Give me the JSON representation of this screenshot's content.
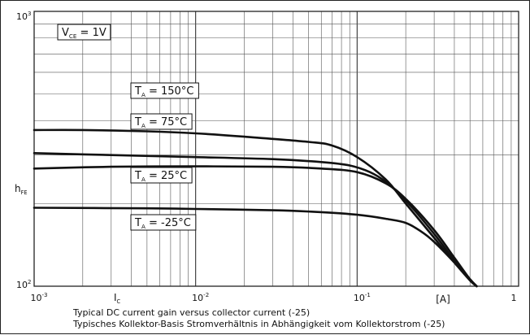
{
  "chart_data": {
    "type": "line",
    "x_scale": "log",
    "y_scale": "log",
    "xlim": [
      0.001,
      1
    ],
    "ylim": [
      100,
      1000
    ],
    "grid": true,
    "x_ticks": [
      {
        "value": 0.001,
        "base": "10",
        "exp": "-3"
      },
      {
        "value": 0.01,
        "base": "10",
        "exp": "-2"
      },
      {
        "value": 0.1,
        "base": "10",
        "exp": "-1"
      },
      {
        "value": 1,
        "base": "1",
        "exp": ""
      }
    ],
    "y_ticks": [
      {
        "value": 1000,
        "base": "10",
        "exp": "3"
      },
      {
        "value": 100,
        "base": "10",
        "exp": "2"
      }
    ],
    "xlabel": {
      "main": "I",
      "sub": "C"
    },
    "xunit": "[A]",
    "ylabel": {
      "main": "h",
      "sub": "FE"
    },
    "condition": {
      "main": "V",
      "sub": "CE",
      "rest": " = 1V"
    },
    "series": [
      {
        "label": {
          "main": "T",
          "sub": "A",
          "rest": " = 150°C"
        },
        "points": [
          [
            0.001,
            370
          ],
          [
            0.002,
            370
          ],
          [
            0.005,
            366
          ],
          [
            0.01,
            360
          ],
          [
            0.02,
            350
          ],
          [
            0.05,
            335
          ],
          [
            0.07,
            325
          ],
          [
            0.1,
            295
          ],
          [
            0.15,
            245
          ],
          [
            0.2,
            200
          ],
          [
            0.3,
            150
          ],
          [
            0.4,
            122
          ],
          [
            0.5,
            105
          ],
          [
            0.55,
            100
          ]
        ]
      },
      {
        "label": {
          "main": "T",
          "sub": "A",
          "rest": " = 75°C"
        },
        "points": [
          [
            0.001,
            305
          ],
          [
            0.003,
            300
          ],
          [
            0.01,
            295
          ],
          [
            0.03,
            290
          ],
          [
            0.06,
            283
          ],
          [
            0.09,
            275
          ],
          [
            0.12,
            260
          ],
          [
            0.15,
            240
          ],
          [
            0.2,
            205
          ],
          [
            0.3,
            155
          ],
          [
            0.4,
            124
          ],
          [
            0.5,
            106
          ],
          [
            0.55,
            100
          ]
        ]
      },
      {
        "label": {
          "main": "T",
          "sub": "A",
          "rest": " = 25°C"
        },
        "points": [
          [
            0.001,
            268
          ],
          [
            0.003,
            272
          ],
          [
            0.01,
            273
          ],
          [
            0.03,
            272
          ],
          [
            0.06,
            268
          ],
          [
            0.1,
            260
          ],
          [
            0.15,
            237
          ],
          [
            0.2,
            208
          ],
          [
            0.3,
            160
          ],
          [
            0.4,
            127
          ],
          [
            0.5,
            106
          ],
          [
            0.55,
            100
          ]
        ]
      },
      {
        "label": {
          "main": "T",
          "sub": "A",
          "rest": " = -25°C"
        },
        "points": [
          [
            0.001,
            193
          ],
          [
            0.005,
            192
          ],
          [
            0.01,
            191
          ],
          [
            0.03,
            189
          ],
          [
            0.06,
            186
          ],
          [
            0.1,
            182
          ],
          [
            0.15,
            176
          ],
          [
            0.2,
            170
          ],
          [
            0.25,
            158
          ],
          [
            0.3,
            145
          ],
          [
            0.4,
            122
          ],
          [
            0.5,
            105
          ],
          [
            0.55,
            100
          ]
        ]
      }
    ]
  },
  "captions": {
    "line1": "Typical DC current gain versus collector current (-25)",
    "line2": "Typisches Kollektor-Basis Stromverhältnis in Abhängigkeit vom Kollektorstrom (-25)"
  }
}
